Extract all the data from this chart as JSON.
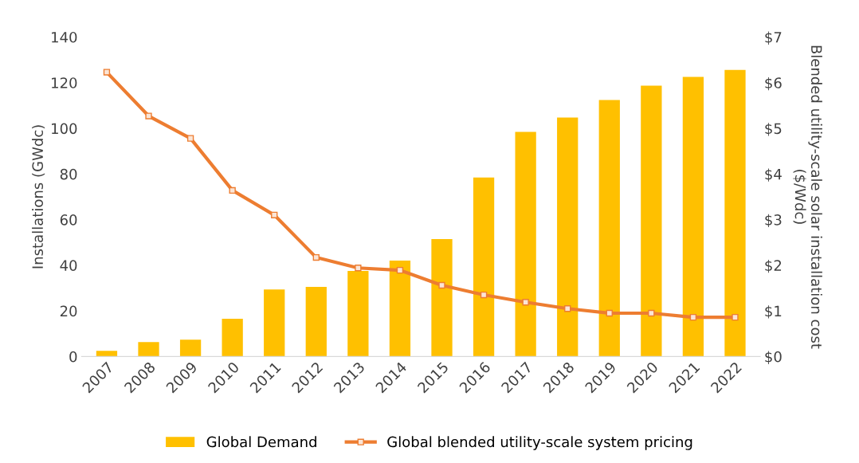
{
  "chart_data": {
    "type": "bar",
    "categories": [
      "2007",
      "2008",
      "2009",
      "2010",
      "2011",
      "2012",
      "2013",
      "2014",
      "2015",
      "2016",
      "2017",
      "2018",
      "2019",
      "2020",
      "2021",
      "2022"
    ],
    "ylabel": "Installations (GWdc)",
    "y2label": "Blended utility-scale solar installation cost\n($/Wdc)",
    "ylim": [
      0,
      140
    ],
    "yticks": [
      0,
      20,
      40,
      60,
      80,
      100,
      120,
      140
    ],
    "y2lim": [
      0,
      7
    ],
    "y2ticks": [
      {
        "value": 0,
        "label": "$0"
      },
      {
        "value": 1,
        "label": "$1"
      },
      {
        "value": 2,
        "label": "$2"
      },
      {
        "value": 3,
        "label": "$3"
      },
      {
        "value": 4,
        "label": "$4"
      },
      {
        "value": 5,
        "label": "$5"
      },
      {
        "value": 6,
        "label": "$6"
      },
      {
        "value": 7,
        "label": "$7"
      }
    ],
    "grid": false,
    "legend": "bottom",
    "series": [
      {
        "name": "Global Demand",
        "color": "#ffc000",
        "values": [
          2.5,
          6.3,
          7.4,
          16.5,
          29.4,
          30.5,
          37.5,
          42,
          51.5,
          78.4,
          98.4,
          104.7,
          112.4,
          118.7,
          122.5,
          125.6
        ]
      },
      {
        "name": "Global blended utility-scale system pricing",
        "type": "line",
        "axis": "y2",
        "color": "#ed7d31",
        "marker": "square",
        "values": [
          6.23,
          5.27,
          4.78,
          3.64,
          3.1,
          2.17,
          1.94,
          1.89,
          1.56,
          1.35,
          1.19,
          1.05,
          0.95,
          0.95,
          0.86,
          0.86
        ]
      }
    ]
  }
}
